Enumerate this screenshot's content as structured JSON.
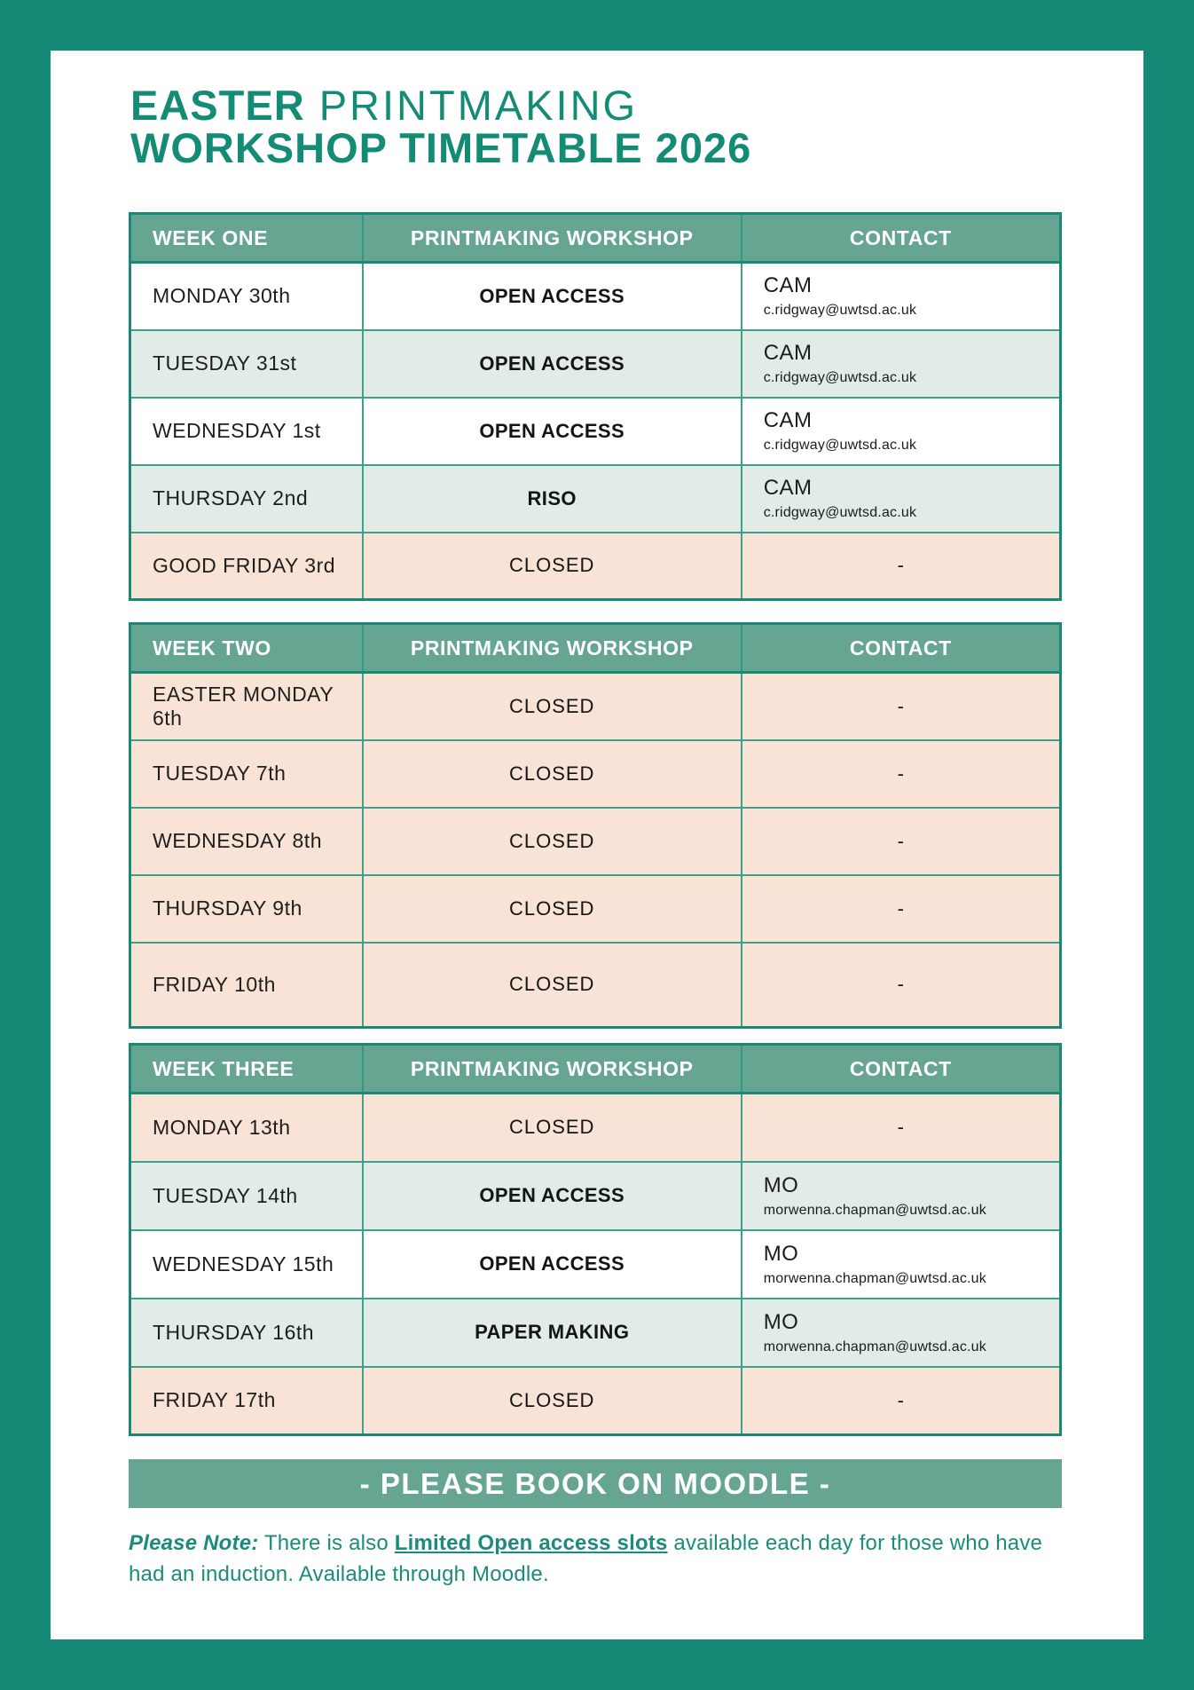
{
  "title": {
    "line1_bold": "EASTER",
    "line1_rest": " PRINTMAKING",
    "line2": "WORKSHOP TIMETABLE 2026"
  },
  "colors": {
    "brand_teal": "#178A77",
    "header_sage": "#66A591",
    "row_light_green": "#E0ECE5",
    "row_peach": "#F8E3D6",
    "title_teal": "#148C75",
    "note_teal": "#1B8B7B"
  },
  "tables": [
    {
      "week_label": "WEEK ONE",
      "workshop_header": "PRINTMAKING WORKSHOP",
      "contact_header": "CONTACT",
      "rows": [
        {
          "day": "MONDAY 30th",
          "workshop": "OPEN ACCESS",
          "contact_name": "CAM",
          "contact_email": "c.ridgway@uwtsd.ac.uk"
        },
        {
          "day": "TUESDAY 31st",
          "workshop": "OPEN ACCESS",
          "contact_name": "CAM",
          "contact_email": "c.ridgway@uwtsd.ac.uk"
        },
        {
          "day": "WEDNESDAY 1st",
          "workshop": "OPEN ACCESS",
          "contact_name": "CAM",
          "contact_email": "c.ridgway@uwtsd.ac.uk"
        },
        {
          "day": "THURSDAY 2nd",
          "workshop": "RISO",
          "contact_name": "CAM",
          "contact_email": "c.ridgway@uwtsd.ac.uk"
        },
        {
          "day": "GOOD FRIDAY 3rd",
          "workshop": "CLOSED",
          "contact": "-"
        }
      ]
    },
    {
      "week_label": "WEEK TWO",
      "workshop_header": "PRINTMAKING WORKSHOP",
      "contact_header": "CONTACT",
      "rows": [
        {
          "day": "EASTER MONDAY 6th",
          "workshop": "CLOSED",
          "contact": "-"
        },
        {
          "day": "TUESDAY 7th",
          "workshop": "CLOSED",
          "contact": "-"
        },
        {
          "day": "WEDNESDAY 8th",
          "workshop": "CLOSED",
          "contact": "-"
        },
        {
          "day": "THURSDAY 9th",
          "workshop": "CLOSED",
          "contact": "-"
        },
        {
          "day": "FRIDAY 10th",
          "workshop": "CLOSED",
          "contact": "-"
        }
      ]
    },
    {
      "week_label": "WEEK THREE",
      "workshop_header": "PRINTMAKING WORKSHOP",
      "contact_header": "CONTACT",
      "rows": [
        {
          "day": "MONDAY 13th",
          "workshop": "CLOSED",
          "contact": "-"
        },
        {
          "day": "TUESDAY 14th",
          "workshop": "OPEN ACCESS",
          "contact_name": "MO",
          "contact_email": "morwenna.chapman@uwtsd.ac.uk"
        },
        {
          "day": "WEDNESDAY 15th",
          "workshop": "OPEN ACCESS",
          "contact_name": "MO",
          "contact_email": "morwenna.chapman@uwtsd.ac.uk"
        },
        {
          "day": "THURSDAY 16th",
          "workshop": "PAPER MAKING",
          "contact_name": "MO",
          "contact_email": "morwenna.chapman@uwtsd.ac.uk"
        },
        {
          "day": "FRIDAY 17th",
          "workshop": "CLOSED",
          "contact": "-"
        }
      ]
    }
  ],
  "banner": {
    "label": "- PLEASE BOOK ON MOODLE -"
  },
  "note": {
    "prefix": "Please Note:",
    "before_link": " There is also ",
    "link": "Limited Open access slots",
    "after_link": " available each day for those who have had an induction. Available through Moodle."
  }
}
